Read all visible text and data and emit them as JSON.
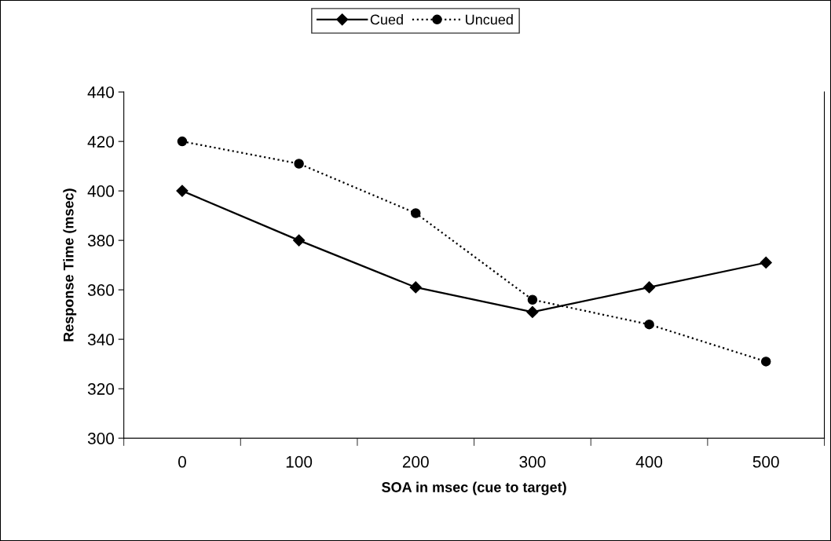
{
  "chart_data": {
    "type": "line",
    "xlabel": "SOA in msec (cue to target)",
    "ylabel": "Response Time (msec)",
    "categories": [
      "0",
      "100",
      "200",
      "300",
      "400",
      "500"
    ],
    "series": [
      {
        "name": "Cued",
        "color": "#000000",
        "marker": "diamond",
        "line_style": "solid",
        "values": [
          400,
          380,
          361,
          351,
          361,
          371
        ]
      },
      {
        "name": "Uncued",
        "color": "#000000",
        "marker": "circle",
        "line_style": "dotted",
        "values": [
          420,
          411,
          391,
          356,
          346,
          331
        ]
      }
    ],
    "ylim": [
      300,
      440
    ],
    "yticks": [
      300,
      320,
      340,
      360,
      380,
      400,
      420,
      440
    ],
    "grid": false,
    "legend": "top"
  }
}
